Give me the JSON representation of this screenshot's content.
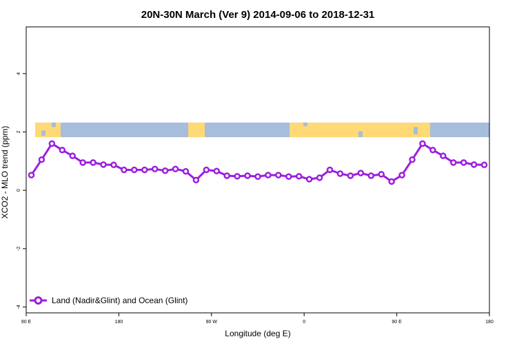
{
  "chart_data": {
    "type": "line",
    "title": "20N-30N March (Ver 9)   2014-09-06 to 2018-12-31",
    "xlabel": "Longitude (deg E)",
    "ylabel": "XCO2 - MLO trend (ppm)",
    "xlim": [
      90,
      540
    ],
    "ylim": [
      -4.2,
      5.6
    ],
    "x_ticks": [
      {
        "value": 90,
        "label": "90 E"
      },
      {
        "value": 180,
        "label": "180"
      },
      {
        "value": 270,
        "label": "90 W"
      },
      {
        "value": 360,
        "label": "0"
      },
      {
        "value": 450,
        "label": "90 E"
      },
      {
        "value": 540,
        "label": "180"
      }
    ],
    "y_ticks": [
      {
        "value": -4,
        "label": "-4"
      },
      {
        "value": -2,
        "label": "-2"
      },
      {
        "value": 0,
        "label": "0"
      },
      {
        "value": 2,
        "label": "2"
      },
      {
        "value": 4,
        "label": "4"
      }
    ],
    "legend_position": "bottom-left",
    "series": [
      {
        "name": "Land (Nadir&Glint) and Ocean (Glint)",
        "color": "#9b1de0",
        "x": [
          95,
          105,
          115,
          125,
          135,
          145,
          155,
          165,
          175,
          185,
          195,
          205,
          215,
          225,
          235,
          245,
          255,
          265,
          275,
          285,
          295,
          305,
          315,
          325,
          335,
          345,
          355,
          365,
          375,
          385,
          395,
          405,
          415,
          425,
          435,
          445,
          455,
          465,
          475,
          485,
          495,
          505,
          515,
          525,
          535
        ],
        "y": [
          0.52,
          1.05,
          1.6,
          1.38,
          1.18,
          0.95,
          0.95,
          0.88,
          0.87,
          0.7,
          0.7,
          0.7,
          0.73,
          0.67,
          0.73,
          0.65,
          0.35,
          0.7,
          0.66,
          0.5,
          0.48,
          0.5,
          0.47,
          0.52,
          0.52,
          0.47,
          0.48,
          0.38,
          0.43,
          0.7,
          0.57,
          0.5,
          0.59,
          0.5,
          0.55,
          0.3,
          0.52,
          1.05,
          1.6,
          1.38,
          1.18,
          0.95,
          0.95,
          0.88,
          0.87
        ]
      }
    ],
    "map_strip": {
      "y_range": [
        1.82,
        2.32
      ],
      "ocean_color": "#a6bddb",
      "land_color": "#fed976"
    }
  }
}
